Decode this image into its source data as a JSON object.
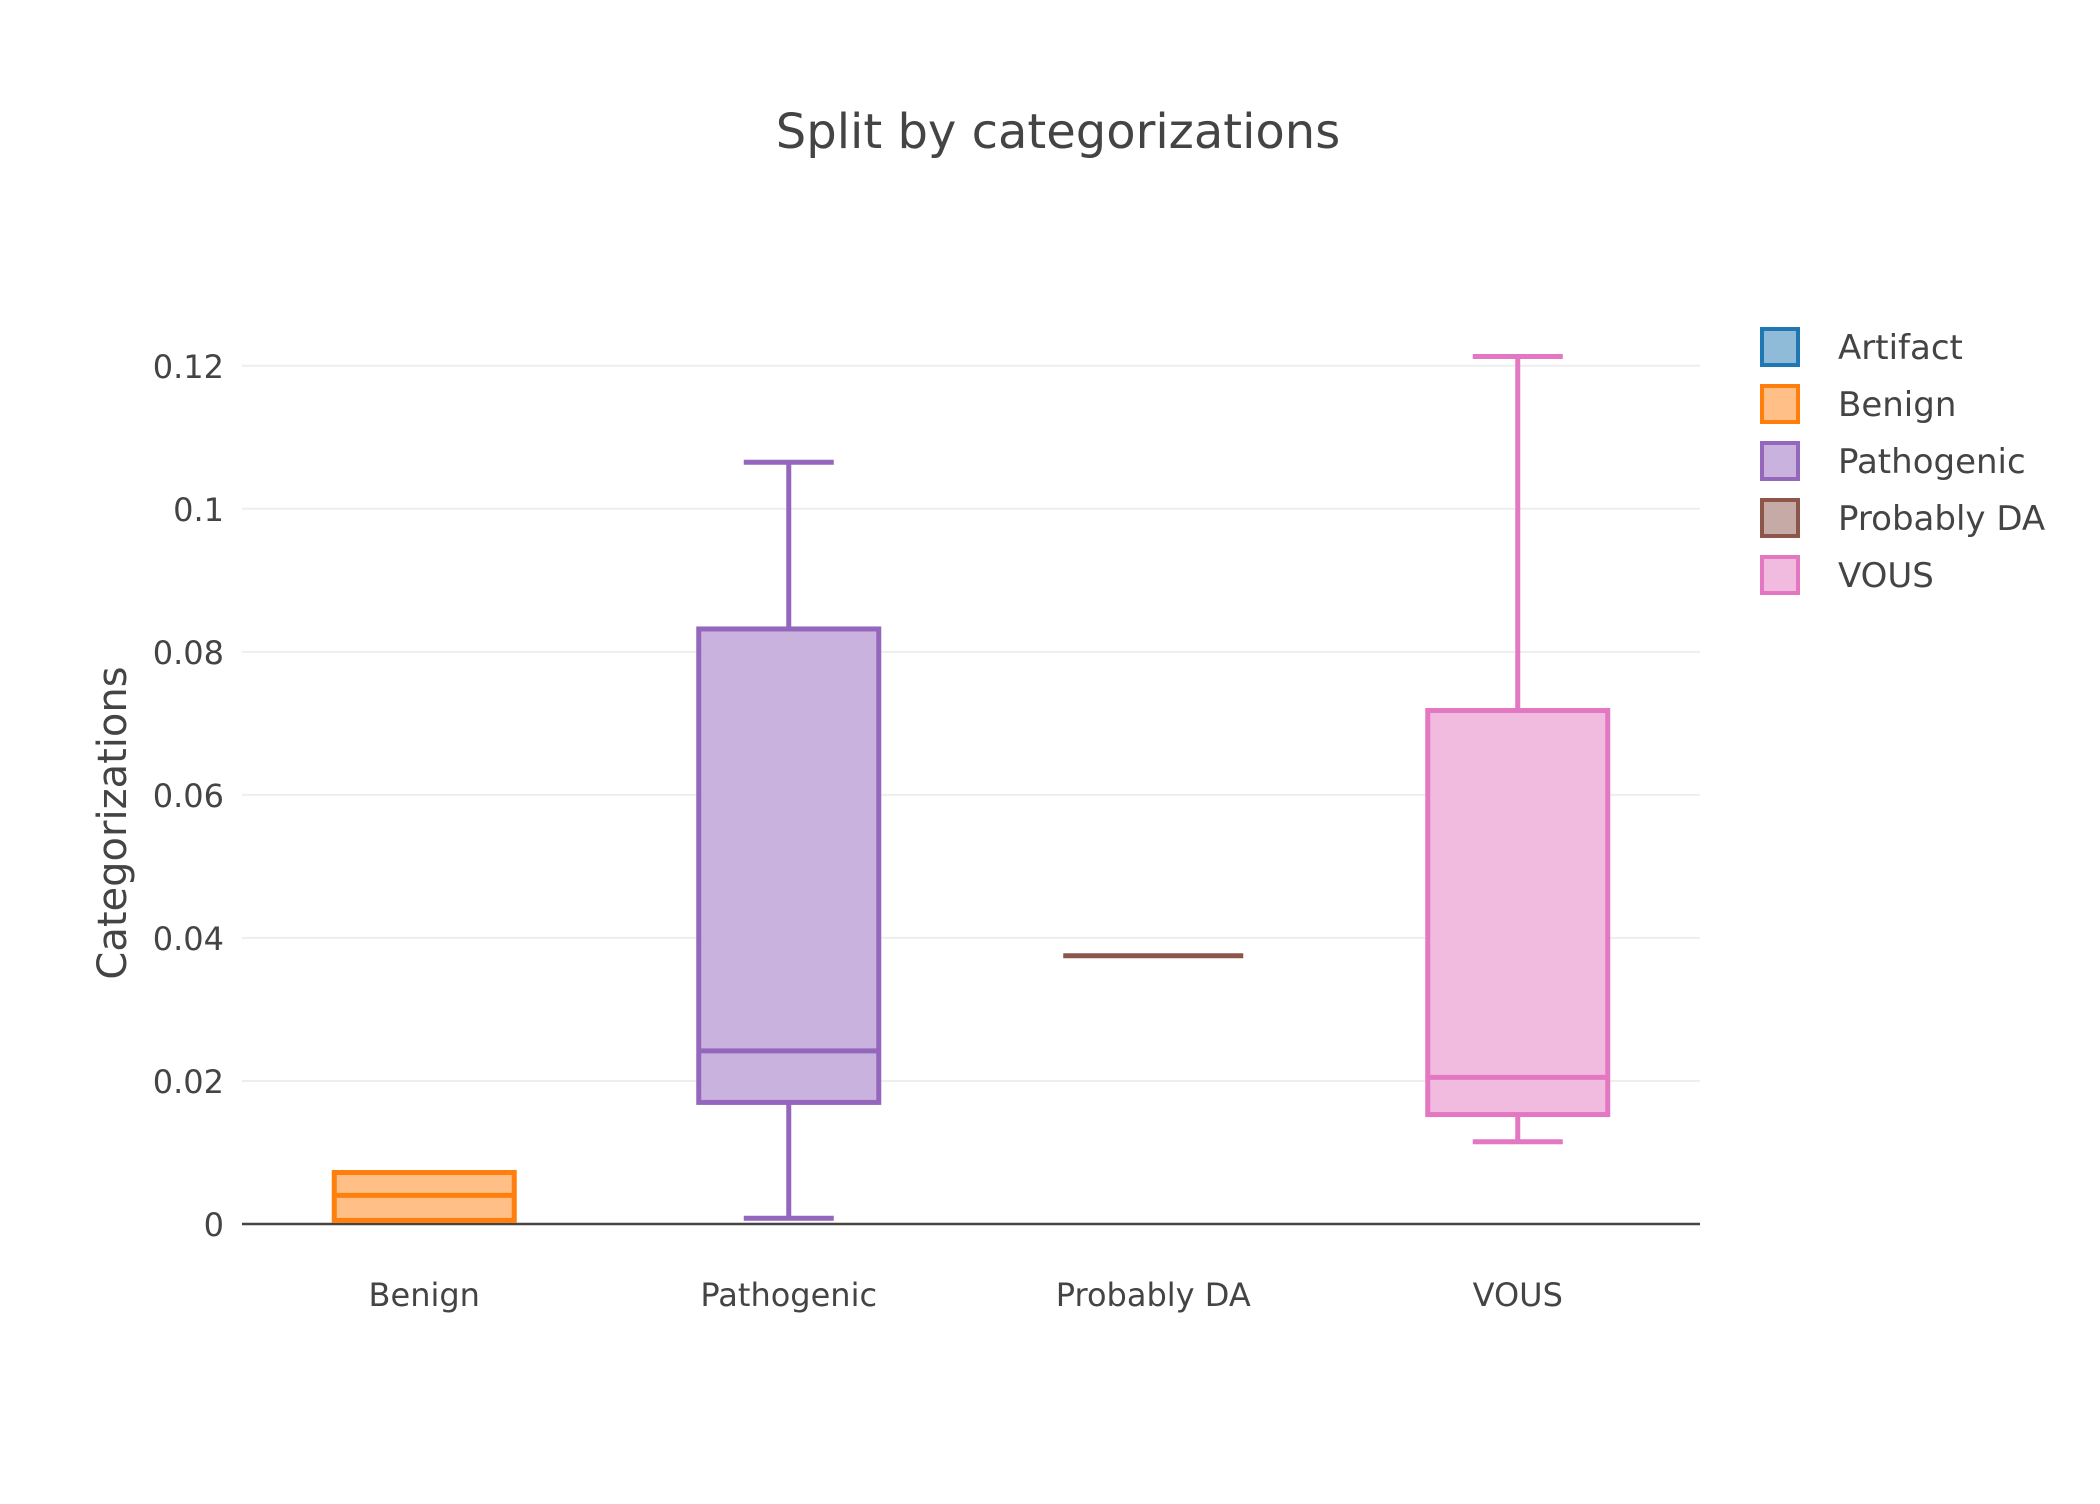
{
  "chart_data": {
    "type": "box",
    "title": "Split by categorizations",
    "xlabel": "",
    "ylabel": "Categorizations",
    "ylim": [
      0,
      0.125
    ],
    "yticks": [
      0,
      0.02,
      0.04,
      0.06,
      0.08,
      0.1,
      0.12
    ],
    "ytick_labels": [
      "0",
      "0.02",
      "0.04",
      "0.06",
      "0.08",
      "0.1",
      "0.12"
    ],
    "categories": [
      "Benign",
      "Pathogenic",
      "Probably DA",
      "VOUS"
    ],
    "grid": true,
    "legend_position": "top-right",
    "series": [
      {
        "name": "Artifact",
        "color": "#1f77b4",
        "fill": "#8fbbd9",
        "category": null,
        "min": null,
        "q1": null,
        "median": null,
        "q3": null,
        "max": null
      },
      {
        "name": "Benign",
        "color": "#ff7f0e",
        "fill": "#ffbf86",
        "category": "Benign",
        "min": 0.0005,
        "q1": 0.0005,
        "median": 0.004,
        "q3": 0.0072,
        "max": 0.0072
      },
      {
        "name": "Pathogenic",
        "color": "#9467bd",
        "fill": "#c9b3de",
        "category": "Pathogenic",
        "min": 0.0008,
        "q1": 0.017,
        "median": 0.0242,
        "q3": 0.0832,
        "max": 0.1065
      },
      {
        "name": "Probably DA",
        "color": "#8c564b",
        "fill": "#c5aaa5",
        "category": "Probably DA",
        "min": 0.0375,
        "q1": 0.0375,
        "median": 0.0375,
        "q3": 0.0375,
        "max": 0.0375
      },
      {
        "name": "VOUS",
        "color": "#e377c2",
        "fill": "#f1bbe0",
        "category": "VOUS",
        "min": 0.0115,
        "q1": 0.0153,
        "median": 0.0205,
        "q3": 0.0718,
        "max": 0.1213
      }
    ]
  }
}
